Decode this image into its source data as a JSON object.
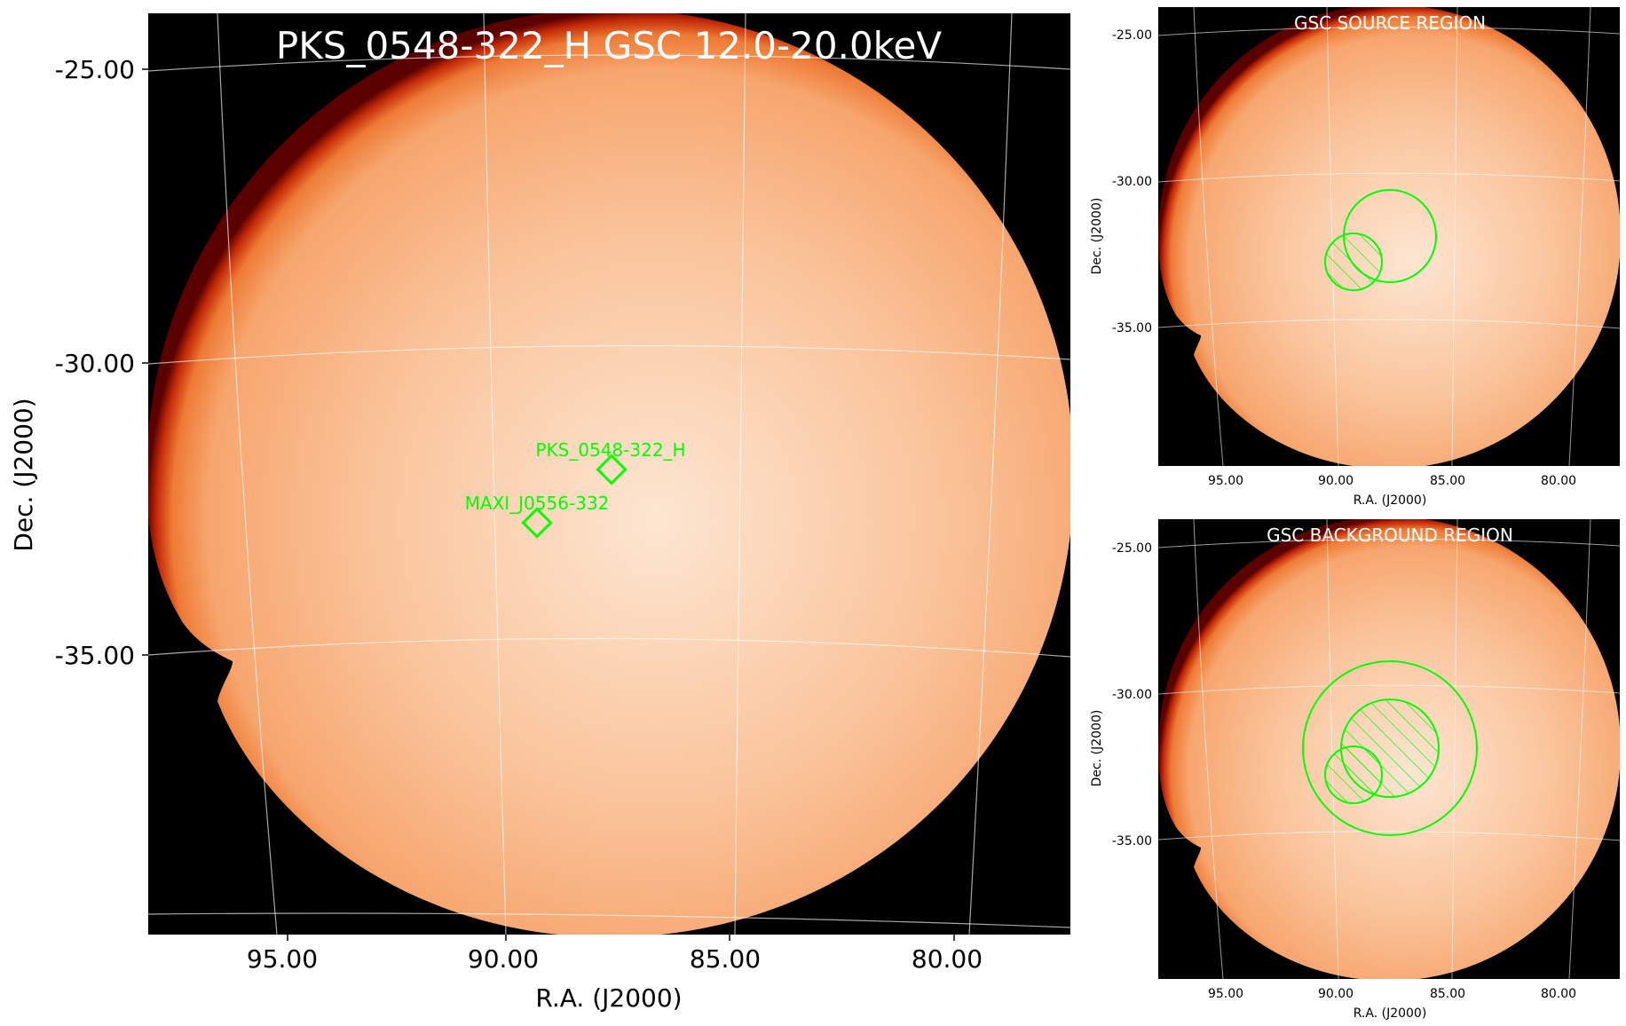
{
  "main": {
    "title": "PKS_0548-322_H GSC 12.0-20.0keV",
    "xlabel": "R.A. (J2000)",
    "ylabel": "Dec. (J2000)",
    "yticks": [
      "-25.00",
      "-30.00",
      "-35.00"
    ],
    "xticks": [
      "95.00",
      "90.00",
      "85.00",
      "80.00"
    ],
    "markers": [
      {
        "label": "PKS_0548-322_H"
      },
      {
        "label": "MAXI_J0556-332"
      }
    ]
  },
  "source_panel": {
    "title": "GSC SOURCE REGION",
    "xlabel": "R.A. (J2000)",
    "ylabel": "Dec. (J2000)",
    "yticks": [
      "-25.00",
      "-30.00",
      "-35.00"
    ],
    "xticks": [
      "95.00",
      "90.00",
      "85.00",
      "80.00"
    ]
  },
  "background_panel": {
    "title": "GSC BACKGROUND REGION",
    "xlabel": "R.A. (J2000)",
    "ylabel": "Dec. (J2000)",
    "yticks": [
      "-25.00",
      "-30.00",
      "-35.00"
    ],
    "xticks": [
      "95.00",
      "90.00",
      "85.00",
      "80.00"
    ]
  },
  "colors": {
    "region": "#00ff00",
    "frame": "#000000",
    "disk_center": "#fde8d6",
    "disk_mid": "#f9b98a",
    "disk_edge": "#e04a10",
    "grid": "#ffffff"
  }
}
